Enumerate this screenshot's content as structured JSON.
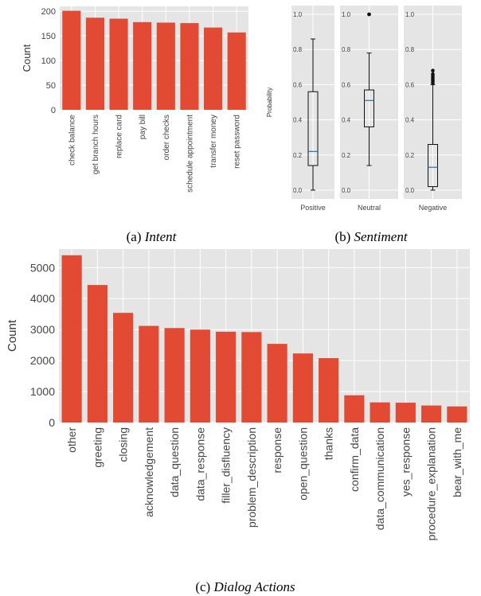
{
  "chart_data": [
    {
      "type": "bar",
      "ylabel": "Count",
      "ylim": [
        0,
        210
      ],
      "yticks": [
        0,
        50,
        100,
        150,
        200
      ],
      "grid": true,
      "bar_color": "#E24A33",
      "background": "#E5E5E5",
      "categories": [
        "check balance",
        "get branch hours",
        "replace card",
        "pay bill",
        "order checks",
        "schedule appointment",
        "transfer money",
        "reset password"
      ],
      "values": [
        201,
        187,
        185,
        178,
        177,
        176,
        167,
        157
      ],
      "caption": {
        "label": "(a)",
        "title": "Intent"
      }
    },
    {
      "type": "box",
      "ylabel": "Probability",
      "ylim": [
        -0.05,
        1.05
      ],
      "yticks": [
        0.0,
        0.2,
        0.4,
        0.6,
        0.8,
        1.0
      ],
      "ytick_labels": [
        "0.0",
        "0.2",
        "0.4",
        "0.6",
        "0.8",
        "1.0"
      ],
      "grid": true,
      "median_color": "#1f77b4",
      "background": "#E5E5E5",
      "panels": [
        {
          "label": "Positive",
          "whisker_low": 0.0,
          "q1": 0.14,
          "median": 0.22,
          "q3": 0.56,
          "whisker_high": 0.86,
          "outliers": []
        },
        {
          "label": "Neutral",
          "whisker_low": 0.14,
          "q1": 0.36,
          "median": 0.51,
          "q3": 0.57,
          "whisker_high": 0.78,
          "outliers": [
            1.0,
            1.0
          ]
        },
        {
          "label": "Negative",
          "whisker_low": 0.0,
          "q1": 0.02,
          "median": 0.13,
          "q3": 0.26,
          "whisker_high": 0.6,
          "outliers": [
            0.61,
            0.62,
            0.63,
            0.64,
            0.65,
            0.66,
            0.68
          ]
        }
      ],
      "caption": {
        "label": "(b)",
        "title": "Sentiment"
      }
    },
    {
      "type": "bar",
      "ylabel": "Count",
      "ylim": [
        0,
        5600
      ],
      "yticks": [
        0,
        1000,
        2000,
        3000,
        4000,
        5000
      ],
      "grid": true,
      "bar_color": "#E24A33",
      "background": "#E5E5E5",
      "categories": [
        "other",
        "greeting",
        "closing",
        "acknowledgement",
        "data_question",
        "data_response",
        "filler_disfluency",
        "problem_description",
        "response",
        "open_question",
        "thanks",
        "confirm_data",
        "data_communication",
        "yes_response",
        "procedure_explanation",
        "bear_with_me"
      ],
      "values": [
        5400,
        4440,
        3540,
        3120,
        3050,
        3000,
        2930,
        2920,
        2540,
        2230,
        2080,
        880,
        650,
        640,
        550,
        520
      ],
      "caption": {
        "label": "(c)",
        "title": "Dialog Actions"
      }
    }
  ]
}
